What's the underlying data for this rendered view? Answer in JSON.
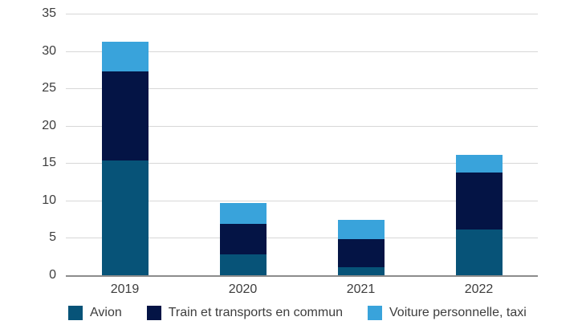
{
  "chart_data": {
    "type": "bar",
    "stacked": true,
    "title": "",
    "xlabel": "",
    "ylabel": "",
    "categories": [
      "2019",
      "2020",
      "2021",
      "2022"
    ],
    "series": [
      {
        "name": "Avion",
        "color": "#075378",
        "values": [
          15.3,
          2.8,
          1.1,
          6.1
        ]
      },
      {
        "name": "Train et transports en commun",
        "color": "#041445",
        "values": [
          12.0,
          4.1,
          3.7,
          7.6
        ]
      },
      {
        "name": "Voiture personnelle, taxi",
        "color": "#39a3db",
        "values": [
          3.9,
          2.8,
          2.6,
          2.4
        ]
      }
    ],
    "totals": [
      31.2,
      9.7,
      7.4,
      16.1
    ],
    "ylim": [
      0,
      35
    ],
    "yticks": [
      0,
      5,
      10,
      15,
      20,
      25,
      30,
      35
    ],
    "grid": true,
    "legend_position": "bottom"
  },
  "colors": {
    "gridline": "#d7d7d7",
    "axis_line": "#8c8c8c",
    "tick_text": "#3d3d3d",
    "background": "#ffffff"
  }
}
